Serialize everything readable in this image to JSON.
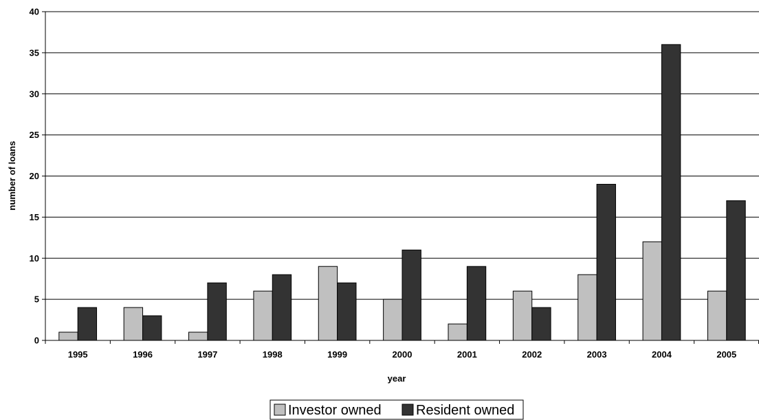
{
  "chart_data": {
    "type": "bar",
    "xlabel": "year",
    "ylabel": "number of loans",
    "ylim": [
      0,
      40
    ],
    "ytick_step": 5,
    "grid": "horizontal",
    "legend_position": "bottom-center",
    "categories": [
      "1995",
      "1996",
      "1997",
      "1998",
      "1999",
      "2000",
      "2001",
      "2002",
      "2003",
      "2004",
      "2005"
    ],
    "series": [
      {
        "name": "Investor owned",
        "color": "#c0c0c0",
        "values": [
          1,
          4,
          1,
          6,
          9,
          5,
          2,
          6,
          8,
          12,
          6
        ]
      },
      {
        "name": "Resident owned",
        "color": "#333333",
        "values": [
          4,
          3,
          7,
          8,
          7,
          11,
          9,
          4,
          19,
          36,
          17
        ]
      }
    ]
  }
}
